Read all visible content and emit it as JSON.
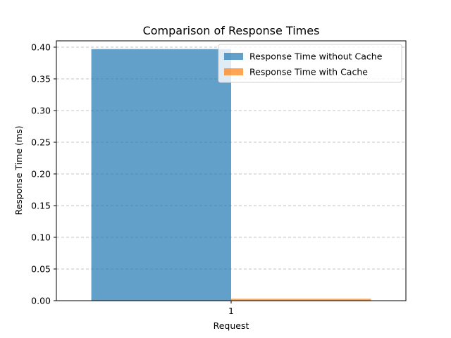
{
  "chart_data": {
    "type": "bar",
    "title": "Comparison of Response Times",
    "xlabel": "Request",
    "ylabel": "Response Time (ms)",
    "categories": [
      "1"
    ],
    "ylim": [
      0,
      0.41
    ],
    "yticks": [
      "0.00",
      "0.05",
      "0.10",
      "0.15",
      "0.20",
      "0.25",
      "0.30",
      "0.35",
      "0.40"
    ],
    "grid": "y-dashed",
    "legend_position": "top-right",
    "series": [
      {
        "name": "Response Time without Cache",
        "values": [
          0.397
        ],
        "color": "#1f77b4"
      },
      {
        "name": "Response Time with Cache",
        "values": [
          0.003
        ],
        "color": "#ff7f0e"
      }
    ]
  }
}
